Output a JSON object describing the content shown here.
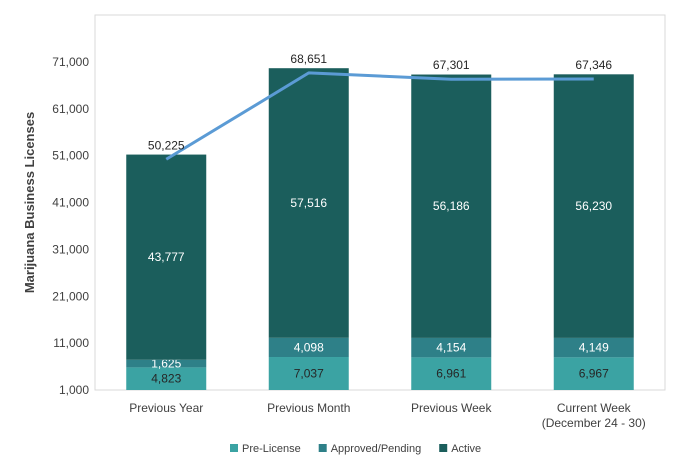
{
  "chart_data": {
    "type": "bar",
    "stacked": true,
    "title": "",
    "xlabel": "",
    "ylabel": "Marijuana Business Licenses",
    "ylim": [
      1000,
      81000
    ],
    "yticks": [
      "1,000",
      "11,000",
      "21,000",
      "31,000",
      "41,000",
      "51,000",
      "61,000",
      "71,000"
    ],
    "categories": [
      [
        "Previous Year"
      ],
      [
        "Previous Month"
      ],
      [
        "Previous Week"
      ],
      [
        "Current Week",
        "(December 24 - 30)"
      ]
    ],
    "series": [
      {
        "name": "Pre-License",
        "color": "#3BA3A3",
        "label_color": "#262626",
        "values": [
          4823,
          7037,
          6961,
          6967
        ],
        "labels": [
          "4,823",
          "7,037",
          "6,961",
          "6,967"
        ]
      },
      {
        "name": "Approved/Pending",
        "color": "#2E8088",
        "label_color": "#ffffff",
        "values": [
          1625,
          4098,
          4154,
          4149
        ],
        "labels": [
          "1,625",
          "4,098",
          "4,154",
          "4,149"
        ]
      },
      {
        "name": "Active",
        "color": "#1B5E5C",
        "label_color": "#ffffff",
        "values": [
          43777,
          57516,
          56186,
          56230
        ],
        "labels": [
          "43,777",
          "57,516",
          "56,186",
          "56,230"
        ]
      }
    ],
    "totals": {
      "color": "#5B9BD5",
      "values": [
        50225,
        68651,
        67301,
        67346
      ],
      "labels": [
        "50,225",
        "68,651",
        "67,301",
        "67,346"
      ]
    },
    "legend_position": "bottom",
    "grid": false
  }
}
